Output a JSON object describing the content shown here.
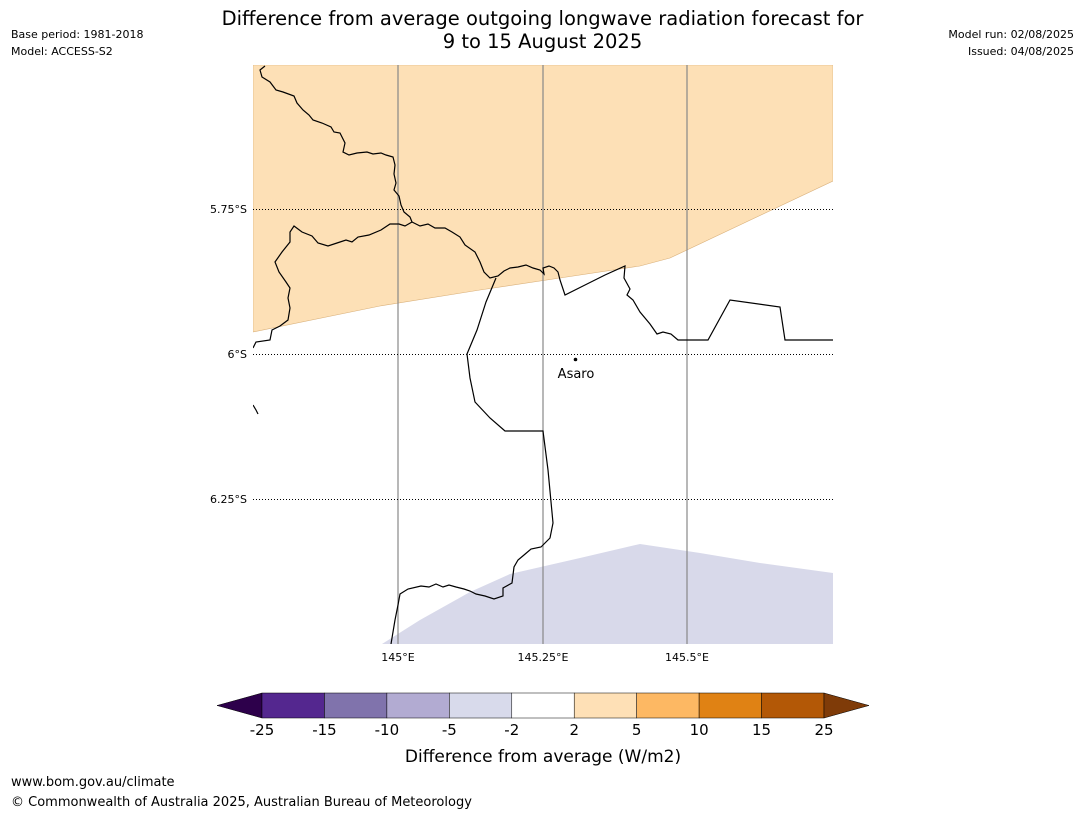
{
  "header": {
    "title_line1": "Difference from average outgoing longwave radiation forecast for",
    "title_line2": "9 to 15 August 2025",
    "base_period": "Base period: 1981-2018",
    "model": "Model: ACCESS-S2",
    "model_run": "Model run: 02/08/2025",
    "issued": "Issued: 04/08/2025"
  },
  "map": {
    "latitude_labels": [
      "5.75°S",
      "6°S",
      "6.25°S"
    ],
    "longitude_labels": [
      "145°E",
      "145.25°E",
      "145.5°E"
    ],
    "place": "Asaro",
    "region_colors": {
      "positive_2_to_5": "#fde0b6",
      "negative_minus5_to_minus2": "#d8d9ea",
      "neutral": "#ffffff"
    }
  },
  "colorbar": {
    "label": "Difference from average (W/m2)",
    "tick_labels": [
      "-25",
      "-15",
      "-10",
      "-5",
      "-2",
      "2",
      "5",
      "10",
      "15",
      "25"
    ],
    "colors": [
      "#54278f",
      "#8073ac",
      "#b2abd2",
      "#d8daeb",
      "#ffffff",
      "#fee0b6",
      "#fdb863",
      "#e08214",
      "#b35806"
    ],
    "extend_low_color": "#2d004b",
    "extend_high_color": "#7f3b08"
  },
  "footer": {
    "url": "www.bom.gov.au/climate",
    "copyright": "© Commonwealth of Australia 2025, Australian Bureau of Meteorology"
  }
}
